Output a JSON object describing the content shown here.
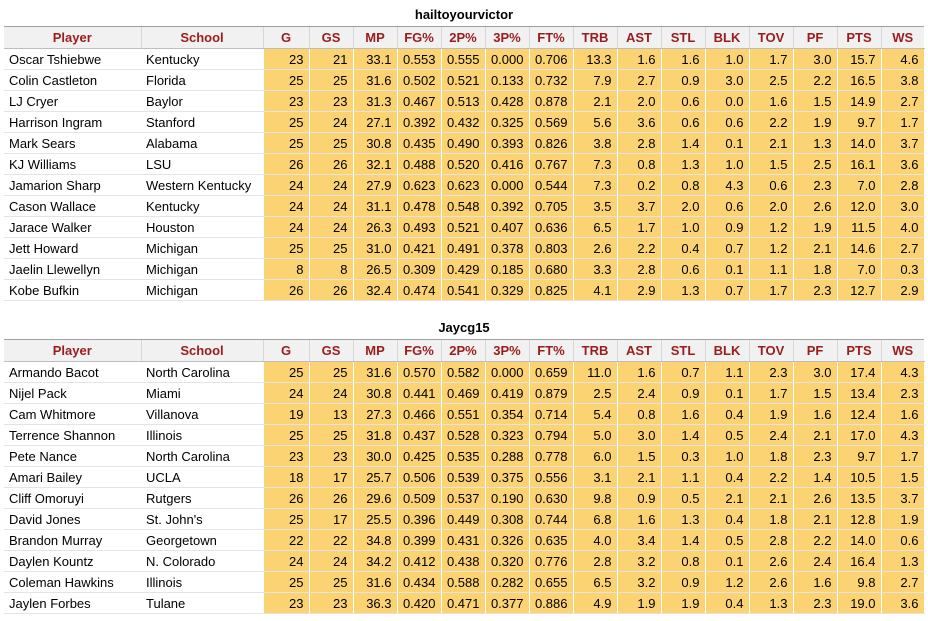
{
  "columns": [
    "Player",
    "School",
    "G",
    "GS",
    "MP",
    "FG%",
    "2P%",
    "3P%",
    "FT%",
    "TRB",
    "AST",
    "STL",
    "BLK",
    "TOV",
    "PF",
    "PTS",
    "WS"
  ],
  "tables": [
    {
      "title": "hailtoyourvictor",
      "rows": [
        [
          "Oscar Tshiebwe",
          "Kentucky",
          "23",
          "21",
          "33.1",
          "0.553",
          "0.555",
          "0.000",
          "0.706",
          "13.3",
          "1.6",
          "1.6",
          "1.0",
          "1.7",
          "3.0",
          "15.7",
          "4.6"
        ],
        [
          "Colin Castleton",
          "Florida",
          "25",
          "25",
          "31.6",
          "0.502",
          "0.521",
          "0.133",
          "0.732",
          "7.9",
          "2.7",
          "0.9",
          "3.0",
          "2.5",
          "2.2",
          "16.5",
          "3.8"
        ],
        [
          "LJ Cryer",
          "Baylor",
          "23",
          "23",
          "31.3",
          "0.467",
          "0.513",
          "0.428",
          "0.878",
          "2.1",
          "2.0",
          "0.6",
          "0.0",
          "1.6",
          "1.5",
          "14.9",
          "2.7"
        ],
        [
          "Harrison Ingram",
          "Stanford",
          "25",
          "24",
          "27.1",
          "0.392",
          "0.432",
          "0.325",
          "0.569",
          "5.6",
          "3.6",
          "0.6",
          "0.6",
          "2.2",
          "1.9",
          "9.7",
          "1.7"
        ],
        [
          "Mark Sears",
          "Alabama",
          "25",
          "25",
          "30.8",
          "0.435",
          "0.490",
          "0.393",
          "0.826",
          "3.8",
          "2.8",
          "1.4",
          "0.1",
          "2.1",
          "1.3",
          "14.0",
          "3.7"
        ],
        [
          "KJ Williams",
          "LSU",
          "26",
          "26",
          "32.1",
          "0.488",
          "0.520",
          "0.416",
          "0.767",
          "7.3",
          "0.8",
          "1.3",
          "1.0",
          "1.5",
          "2.5",
          "16.1",
          "3.6"
        ],
        [
          "Jamarion Sharp",
          "Western Kentucky",
          "24",
          "24",
          "27.9",
          "0.623",
          "0.623",
          "0.000",
          "0.544",
          "7.3",
          "0.2",
          "0.8",
          "4.3",
          "0.6",
          "2.3",
          "7.0",
          "2.8"
        ],
        [
          "Cason Wallace",
          "Kentucky",
          "24",
          "24",
          "31.1",
          "0.478",
          "0.548",
          "0.392",
          "0.705",
          "3.5",
          "3.7",
          "2.0",
          "0.6",
          "2.0",
          "2.6",
          "12.0",
          "3.0"
        ],
        [
          "Jarace Walker",
          "Houston",
          "24",
          "24",
          "26.3",
          "0.493",
          "0.521",
          "0.407",
          "0.636",
          "6.5",
          "1.7",
          "1.0",
          "0.9",
          "1.2",
          "1.9",
          "11.5",
          "4.0"
        ],
        [
          "Jett Howard",
          "Michigan",
          "25",
          "25",
          "31.0",
          "0.421",
          "0.491",
          "0.378",
          "0.803",
          "2.6",
          "2.2",
          "0.4",
          "0.7",
          "1.2",
          "2.1",
          "14.6",
          "2.7"
        ],
        [
          "Jaelin Llewellyn",
          "Michigan",
          "8",
          "8",
          "26.5",
          "0.309",
          "0.429",
          "0.185",
          "0.680",
          "3.3",
          "2.8",
          "0.6",
          "0.1",
          "1.1",
          "1.8",
          "7.0",
          "0.3"
        ],
        [
          "Kobe Bufkin",
          "Michigan",
          "26",
          "26",
          "32.4",
          "0.474",
          "0.541",
          "0.329",
          "0.825",
          "4.1",
          "2.9",
          "1.3",
          "0.7",
          "1.7",
          "2.3",
          "12.7",
          "2.9"
        ]
      ]
    },
    {
      "title": "Jaycg15",
      "rows": [
        [
          "Armando Bacot",
          "North Carolina",
          "25",
          "25",
          "31.6",
          "0.570",
          "0.582",
          "0.000",
          "0.659",
          "11.0",
          "1.6",
          "0.7",
          "1.1",
          "2.3",
          "3.0",
          "17.4",
          "4.3"
        ],
        [
          "Nijel Pack",
          "Miami",
          "24",
          "24",
          "30.8",
          "0.441",
          "0.469",
          "0.419",
          "0.879",
          "2.5",
          "2.4",
          "0.9",
          "0.1",
          "1.7",
          "1.5",
          "13.4",
          "2.3"
        ],
        [
          "Cam Whitmore",
          "Villanova",
          "19",
          "13",
          "27.3",
          "0.466",
          "0.551",
          "0.354",
          "0.714",
          "5.4",
          "0.8",
          "1.6",
          "0.4",
          "1.9",
          "1.6",
          "12.4",
          "1.6"
        ],
        [
          "Terrence Shannon",
          "Illinois",
          "25",
          "25",
          "31.8",
          "0.437",
          "0.528",
          "0.323",
          "0.794",
          "5.0",
          "3.0",
          "1.4",
          "0.5",
          "2.4",
          "2.1",
          "17.0",
          "4.3"
        ],
        [
          "Pete Nance",
          "North Carolina",
          "23",
          "23",
          "30.0",
          "0.425",
          "0.535",
          "0.288",
          "0.778",
          "6.0",
          "1.5",
          "0.3",
          "1.0",
          "1.8",
          "2.3",
          "9.7",
          "1.7"
        ],
        [
          "Amari Bailey",
          "UCLA",
          "18",
          "17",
          "25.7",
          "0.506",
          "0.539",
          "0.375",
          "0.556",
          "3.1",
          "2.1",
          "1.1",
          "0.4",
          "2.2",
          "1.4",
          "10.5",
          "1.5"
        ],
        [
          "Cliff Omoruyi",
          "Rutgers",
          "26",
          "26",
          "29.6",
          "0.509",
          "0.537",
          "0.190",
          "0.630",
          "9.8",
          "0.9",
          "0.5",
          "2.1",
          "2.1",
          "2.6",
          "13.5",
          "3.7"
        ],
        [
          "David Jones",
          "St. John's",
          "25",
          "17",
          "25.5",
          "0.396",
          "0.449",
          "0.308",
          "0.744",
          "6.8",
          "1.6",
          "1.3",
          "0.4",
          "1.8",
          "2.1",
          "12.8",
          "1.9"
        ],
        [
          "Brandon Murray",
          "Georgetown",
          "22",
          "22",
          "34.8",
          "0.399",
          "0.431",
          "0.326",
          "0.635",
          "4.0",
          "3.4",
          "1.4",
          "0.5",
          "2.8",
          "2.2",
          "14.0",
          "0.6"
        ],
        [
          "Daylen Kountz",
          "N. Colorado",
          "24",
          "24",
          "34.2",
          "0.412",
          "0.438",
          "0.320",
          "0.776",
          "2.8",
          "3.2",
          "0.8",
          "0.1",
          "2.6",
          "2.4",
          "16.4",
          "1.3"
        ],
        [
          "Coleman Hawkins",
          "Illinois",
          "25",
          "25",
          "31.6",
          "0.434",
          "0.588",
          "0.282",
          "0.655",
          "6.5",
          "3.2",
          "0.9",
          "1.2",
          "2.6",
          "1.6",
          "9.8",
          "2.7"
        ],
        [
          "Jaylen Forbes",
          "Tulane",
          "23",
          "23",
          "36.3",
          "0.420",
          "0.471",
          "0.377",
          "0.886",
          "4.9",
          "1.9",
          "1.9",
          "0.4",
          "1.3",
          "2.3",
          "19.0",
          "3.6"
        ]
      ]
    }
  ]
}
